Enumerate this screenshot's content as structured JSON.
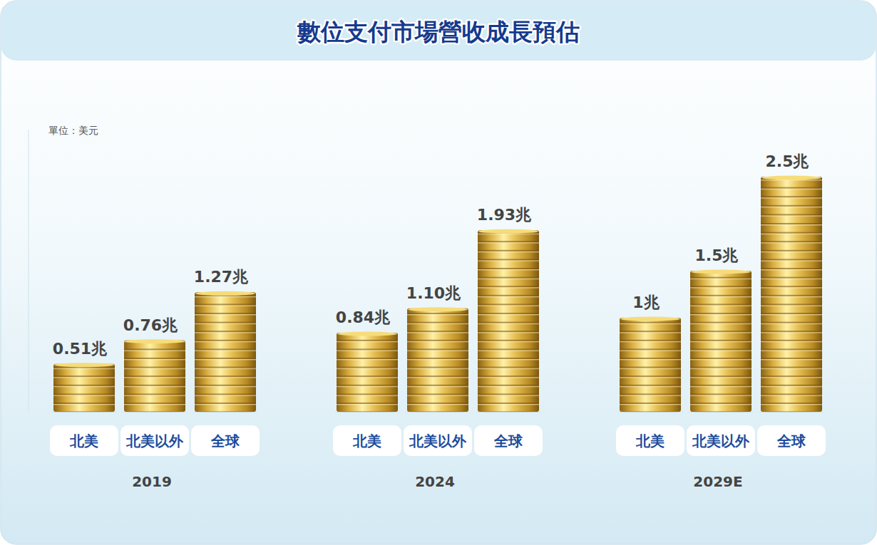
{
  "chart_data": {
    "type": "bar",
    "title": "數位支付市場營收成長預估",
    "subtitle": "單位：美元",
    "categories": [
      "2019",
      "2024",
      "2029E"
    ],
    "series": [
      {
        "name": "北美",
        "color": "#d9a935",
        "values": [
          0.51,
          0.84,
          1
        ],
        "value_labels": [
          "0.51兆",
          "0.84兆",
          "1兆"
        ]
      },
      {
        "name": "北美以外",
        "color": "#d9a935",
        "values": [
          0.76,
          1.1,
          1.5
        ],
        "value_labels": [
          "0.76兆",
          "1.10兆",
          "1.5兆"
        ]
      },
      {
        "name": "全球",
        "color": "#d9a935",
        "values": [
          1.27,
          1.93,
          2.5
        ],
        "value_labels": [
          "1.27兆",
          "1.93兆",
          "2.5兆"
        ]
      }
    ],
    "ylim": [
      0,
      3
    ],
    "tick_labels": false,
    "grid": false,
    "data_labels": true
  }
}
